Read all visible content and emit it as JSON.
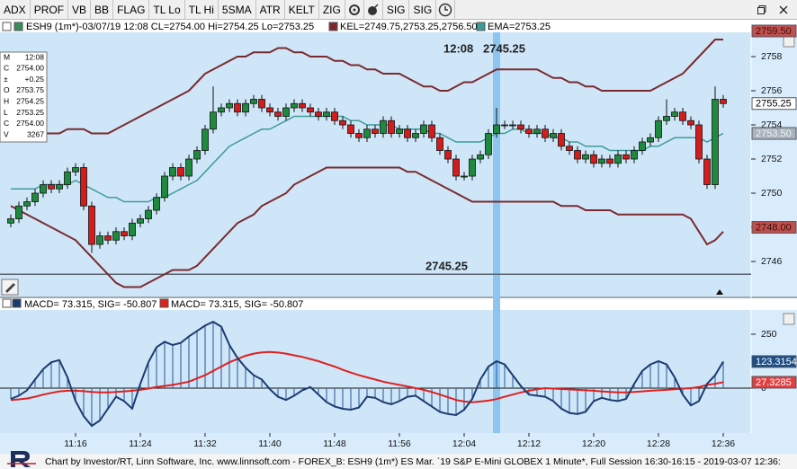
{
  "toolbar": {
    "buttons": [
      "ADX",
      "PROF",
      "VB",
      "BB",
      "FLAG",
      "TL Lo",
      "TL Hi",
      "5SMA",
      "ATR",
      "KELT",
      "ZIG"
    ],
    "buttons2": [
      "SIG",
      "SIG"
    ]
  },
  "chart_data": [
    {
      "type": "candlestick",
      "header": [
        "ESH9 (1m*)-03/07/19 12:08 CL=2754.00 Hi=2754.25 Lo=2753.25",
        "KEL=2749.75,2753.25,2756.50",
        "EMA=2753.25"
      ],
      "categories": [
        null,
        null,
        null,
        null,
        null,
        null,
        null,
        null,
        "11:16",
        null,
        null,
        null,
        null,
        null,
        null,
        null,
        "11:24",
        null,
        null,
        null,
        null,
        null,
        null,
        null,
        "11:32",
        null,
        null,
        null,
        null,
        null,
        null,
        null,
        "11:40",
        null,
        null,
        null,
        null,
        null,
        null,
        null,
        "11:48",
        null,
        null,
        null,
        null,
        null,
        null,
        null,
        "11:56",
        null,
        null,
        null,
        null,
        null,
        null,
        null,
        "12:04",
        null,
        null,
        null,
        null,
        null,
        null,
        null,
        "12:12",
        null,
        null,
        null,
        null,
        null,
        null,
        null,
        "12:20",
        null,
        null,
        null,
        null,
        null,
        null,
        null,
        "12:28",
        null,
        null,
        null,
        null,
        null,
        null,
        null,
        "12:36"
      ],
      "open": [
        2748.25,
        2748.5,
        2749.25,
        2749.5,
        2750,
        2750.5,
        2750.25,
        2750.5,
        2751.25,
        2751.5,
        2749.25,
        2747,
        2747.5,
        2747.25,
        2747.75,
        2747.5,
        2748.25,
        2748.5,
        2749,
        2749.75,
        2751,
        2751.5,
        2751,
        2752,
        2752.5,
        2753.75,
        2754.75,
        2755,
        2755.25,
        2754.75,
        2755.25,
        2755.5,
        2755,
        2754.75,
        2754.5,
        2755,
        2755.25,
        2755,
        2754.75,
        2754.5,
        2754.75,
        2754.25,
        2754,
        2753.5,
        2753.25,
        2753.75,
        2753.5,
        2754.25,
        2753.5,
        2753.75,
        2753.25,
        2753.5,
        2754,
        2753.25,
        2752.5,
        2752,
        2751,
        2751,
        2752,
        2752.25,
        2753.5,
        2754,
        2754,
        2754,
        2753.75,
        2753.5,
        2753.75,
        2753.25,
        2753.5,
        2752.75,
        2752.5,
        2752,
        2752.25,
        2751.75,
        2752,
        2751.75,
        2752.25,
        2752,
        2752.5,
        2753,
        2753.25,
        2754.25,
        2754.5,
        2754.75,
        2754.25,
        2754,
        2752,
        2750.5,
        2755.5
      ],
      "high": [
        2748.75,
        2749.5,
        2749.75,
        2750.25,
        2750.75,
        2750.75,
        2750.75,
        2751.5,
        2751.75,
        2751.75,
        2749.5,
        2747.75,
        2747.75,
        2748,
        2748,
        2748.5,
        2748.75,
        2749.25,
        2750,
        2751.25,
        2751.75,
        2751.75,
        2752.25,
        2752.75,
        2754,
        2756.25,
        2755.25,
        2755.5,
        2755.5,
        2755.5,
        2755.75,
        2755.75,
        2755.25,
        2755,
        2755.25,
        2755.5,
        2755.5,
        2755.25,
        2755,
        2755,
        2755,
        2754.5,
        2754.25,
        2753.75,
        2754,
        2754,
        2754.5,
        2754.5,
        2754,
        2754,
        2753.75,
        2754.25,
        2754.25,
        2753.5,
        2752.75,
        2752.25,
        2751.25,
        2752.25,
        2752.5,
        2753.75,
        2755,
        2754.25,
        2754.25,
        2754.25,
        2754,
        2754,
        2754,
        2753.75,
        2753.75,
        2753,
        2752.75,
        2752.5,
        2752.5,
        2752.25,
        2752.25,
        2752.5,
        2752.5,
        2752.75,
        2753.25,
        2753.5,
        2754.5,
        2755.5,
        2755,
        2755,
        2754.5,
        2754.25,
        2752.25,
        2756.25,
        2755.75
      ],
      "low": [
        2748,
        2748.25,
        2749,
        2749.25,
        2749.75,
        2750,
        2750,
        2750.25,
        2751,
        2749,
        2746.5,
        2746.75,
        2747,
        2747,
        2747.25,
        2747.25,
        2748,
        2748.25,
        2748.75,
        2749.5,
        2750.75,
        2750.75,
        2750.75,
        2751.75,
        2752.25,
        2753.5,
        2754.5,
        2754.75,
        2754.5,
        2754.5,
        2755,
        2754.75,
        2754.5,
        2754.25,
        2754.25,
        2754.75,
        2754.75,
        2754.5,
        2754.25,
        2754.25,
        2754,
        2753.75,
        2753.25,
        2753,
        2753,
        2753.25,
        2753.25,
        2753.25,
        2753.25,
        2753,
        2753,
        2753.25,
        2753,
        2752.25,
        2751.75,
        2750.75,
        2750.75,
        2750.75,
        2751.75,
        2752,
        2753.25,
        2753.75,
        2753.75,
        2753.5,
        2753.25,
        2753.25,
        2753,
        2753,
        2752.5,
        2752.25,
        2751.75,
        2751.75,
        2751.5,
        2751.5,
        2751.5,
        2751.5,
        2751.75,
        2751.75,
        2752.25,
        2752.75,
        2753,
        2754,
        2754.25,
        2754,
        2753.75,
        2751.75,
        2750.25,
        2750.25,
        2755
      ],
      "close": [
        2748.5,
        2749.25,
        2749.5,
        2750,
        2750.5,
        2750.25,
        2750.5,
        2751.25,
        2751.5,
        2749.25,
        2747,
        2747.5,
        2747.25,
        2747.75,
        2747.5,
        2748.25,
        2748.5,
        2749,
        2749.75,
        2751,
        2751.5,
        2751,
        2752,
        2752.5,
        2753.75,
        2754.75,
        2755,
        2755.25,
        2754.75,
        2755.25,
        2755.5,
        2755,
        2754.75,
        2754.5,
        2755,
        2755.25,
        2755,
        2754.75,
        2754.5,
        2754.75,
        2754.25,
        2754,
        2753.5,
        2753.25,
        2753.75,
        2753.5,
        2754.25,
        2753.5,
        2753.75,
        2753.25,
        2753.5,
        2754,
        2753.25,
        2752.5,
        2752,
        2751,
        2751,
        2752,
        2752.25,
        2753.5,
        2754,
        2754,
        2754,
        2753.75,
        2753.5,
        2753.75,
        2753.25,
        2753.5,
        2752.75,
        2752.5,
        2752,
        2752.25,
        2751.75,
        2752,
        2751.75,
        2752.25,
        2752,
        2752.5,
        2753,
        2753.25,
        2754.25,
        2754.5,
        2754.75,
        2754.25,
        2754,
        2752,
        2750.5,
        2755.5,
        2755.25
      ],
      "up_color": "#1f8a3e",
      "down_color": "#d41c1c",
      "lines": [
        {
          "color": "#7a2a2e",
          "values": [
            2753.75,
            2753.75,
            2753.75,
            2753.5,
            2753.5,
            2753.5,
            2753.5,
            2753.75,
            2753.75,
            2753.75,
            2753.5,
            2753.5,
            2753.5,
            2753.75,
            2754,
            2754.25,
            2754.5,
            2754.75,
            2755,
            2755.25,
            2755.5,
            2755.75,
            2756,
            2756.5,
            2757,
            2757.25,
            2757.5,
            2757.75,
            2758,
            2758,
            2758.25,
            2758.25,
            2758.25,
            2758.5,
            2758.5,
            2758.25,
            2758.25,
            2758,
            2758,
            2758,
            2757.75,
            2757.75,
            2757.5,
            2757.5,
            2757.25,
            2757.25,
            2757,
            2757,
            2757,
            2756.75,
            2756.5,
            2756.25,
            2756.25,
            2756,
            2756,
            2756.25,
            2756.5,
            2756.5,
            2756.75,
            2757,
            2757.25,
            2757.25,
            2757.25,
            2757.25,
            2757.25,
            2757.25,
            2757,
            2756.75,
            2756.75,
            2756.5,
            2756.5,
            2756.25,
            2756.25,
            2756,
            2756,
            2756,
            2756,
            2756,
            2756,
            2756,
            2756.25,
            2756.5,
            2756.75,
            2757,
            2757.5,
            2758,
            2758.5,
            2759,
            2759
          ]
        },
        {
          "color": "#7a2a2e",
          "values": [
            2749.25,
            2749,
            2748.75,
            2748.5,
            2748.25,
            2748,
            2747.75,
            2747.5,
            2747.25,
            2746.75,
            2746.25,
            2745.75,
            2745.25,
            2744.75,
            2744.5,
            2744.5,
            2744.5,
            2744.75,
            2745,
            2745.25,
            2745.5,
            2745.5,
            2745.5,
            2745.75,
            2746.25,
            2746.75,
            2747.25,
            2747.75,
            2748.25,
            2748.5,
            2748.75,
            2749.25,
            2749.5,
            2749.75,
            2750,
            2750.5,
            2750.75,
            2751,
            2751.25,
            2751.5,
            2751.5,
            2751.5,
            2751.5,
            2751.5,
            2751.5,
            2751.5,
            2751.5,
            2751.5,
            2751.5,
            2751.25,
            2751.25,
            2751,
            2750.75,
            2750.5,
            2750.25,
            2750,
            2749.75,
            2749.5,
            2749.5,
            2749.5,
            2749.5,
            2749.5,
            2749.5,
            2749.5,
            2749.5,
            2749.5,
            2749.5,
            2749.5,
            2749.25,
            2749.25,
            2749.25,
            2749,
            2749,
            2749,
            2749,
            2748.75,
            2748.75,
            2748.75,
            2748.75,
            2748.75,
            2748.75,
            2748.75,
            2748.75,
            2748.75,
            2748.5,
            2747.75,
            2747,
            2747.25,
            2747.75
          ]
        },
        {
          "color": "#3d9c99",
          "values": [
            2750.25,
            2750.25,
            2750.25,
            2750.25,
            2750.5,
            2750.5,
            2750.5,
            2750.5,
            2750.75,
            2750.5,
            2750.25,
            2750,
            2749.75,
            2749.75,
            2749.5,
            2749.5,
            2749.5,
            2749.5,
            2749.75,
            2749.75,
            2750,
            2750.25,
            2750.5,
            2750.75,
            2751.25,
            2751.75,
            2752.25,
            2752.75,
            2753,
            2753.25,
            2753.5,
            2753.75,
            2753.75,
            2754,
            2754.25,
            2754.5,
            2754.5,
            2754.5,
            2754.5,
            2754.5,
            2754.5,
            2754.5,
            2754.25,
            2754.25,
            2754,
            2754,
            2754,
            2754,
            2753.75,
            2753.75,
            2753.75,
            2753.75,
            2753.5,
            2753.5,
            2753.25,
            2753,
            2753,
            2753,
            2753,
            2753.25,
            2753.5,
            2753.5,
            2753.75,
            2753.75,
            2753.5,
            2753.5,
            2753.5,
            2753.25,
            2753.25,
            2753,
            2753,
            2752.75,
            2752.75,
            2752.75,
            2752.5,
            2752.5,
            2752.5,
            2752.5,
            2752.5,
            2752.75,
            2752.75,
            2753,
            2753.25,
            2753.25,
            2753.25,
            2753.25,
            2753,
            2753.25,
            2753.5
          ]
        }
      ],
      "ylim": [
        2743.95,
        2759.42
      ],
      "yticks": [
        2746,
        2748,
        2750,
        2752,
        2754,
        2756,
        2758
      ],
      "price_tags": [
        {
          "value": 2759.5,
          "label": "2759.50",
          "color": "#c0504d",
          "text_color": "#3a1010"
        },
        {
          "value": 2755.25,
          "color": "#ffffff",
          "text_color": "#000000"
        },
        {
          "value": 2753.5,
          "label": "2753.50",
          "color": "#aab4bd",
          "text_color": "#eef2f5"
        },
        {
          "value": 2748,
          "label": "2748.00",
          "color": "#c0504d",
          "text_color": "#3a1010"
        }
      ],
      "info_box": [
        [
          "M",
          "12:08"
        ],
        [
          "C",
          "2754.00"
        ],
        [
          "±",
          "+0.25"
        ],
        [
          "O",
          "2753.75"
        ],
        [
          "H",
          "2754.25"
        ],
        [
          "L",
          "2753.25"
        ],
        [
          "C",
          "2754.00"
        ],
        [
          "V",
          "3267"
        ]
      ],
      "cursor_time": "12:08",
      "hline": 2745.25
    },
    {
      "type": "macd",
      "header": [
        "MACD=  73.315, SIG= -50.807",
        "MACD=  73.315, SIG= -50.807"
      ],
      "macd": {
        "color": "#1d3b6f",
        "bar_color": "#3d6fa8",
        "values": [
          -50,
          -35,
          -10,
          40,
          88,
          120,
          130,
          50,
          -60,
          -130,
          -175,
          -150,
          -95,
          -40,
          -60,
          -95,
          20,
          120,
          190,
          215,
          200,
          210,
          240,
          265,
          290,
          308,
          285,
          200,
          140,
          95,
          60,
          40,
          -5,
          -40,
          -55,
          -35,
          -10,
          5,
          -30,
          -65,
          -85,
          -96,
          -100,
          -90,
          -40,
          -45,
          -65,
          -75,
          -60,
          -40,
          -35,
          -60,
          -85,
          -110,
          -120,
          -125,
          -100,
          -50,
          40,
          100,
          125,
          110,
          60,
          10,
          -30,
          -35,
          -40,
          -60,
          -95,
          -115,
          -120,
          -110,
          -60,
          -45,
          -55,
          -60,
          -50,
          20,
          80,
          110,
          125,
          110,
          50,
          -30,
          -80,
          -60,
          20,
          60,
          123.3154
        ]
      },
      "signal": {
        "color": "#e0201e",
        "values": [
          -55,
          -52,
          -48,
          -40,
          -30,
          -22,
          -15,
          -12,
          -12,
          -14,
          -18,
          -20,
          -20,
          -18,
          -15,
          -12,
          -8,
          -2,
          5,
          10,
          15,
          22,
          30,
          45,
          60,
          80,
          100,
          120,
          135,
          150,
          160,
          166,
          168,
          165,
          160,
          152,
          145,
          135,
          125,
          112,
          100,
          85,
          72,
          60,
          50,
          40,
          30,
          22,
          15,
          8,
          0,
          -8,
          -18,
          -30,
          -42,
          -55,
          -62,
          -66,
          -62,
          -58,
          -50.807,
          -40,
          -30,
          -20,
          -12,
          -5,
          0,
          -2,
          -4,
          -6,
          -8,
          -10,
          -12,
          -15,
          -18,
          -20,
          -20,
          -18,
          -15,
          -12,
          -10,
          -8,
          -5,
          -2,
          0,
          5,
          15,
          20,
          27.3285
        ]
      },
      "ylim": [
        -208.3,
        362.5
      ],
      "yticks": [
        0,
        250
      ],
      "tags": [
        {
          "value": 123.3154,
          "color": "#1c4f86",
          "text_color": "#ffffff"
        },
        {
          "value": 27.3285,
          "color": "#e04040",
          "text_color": "#ffffff"
        }
      ]
    }
  ],
  "footer": "Chart by Investor/RT, Linn Software, Inc. www.linnsoft.com - FOREX_B: ESH9 (1m*) ES Mar. `19 S&P E-Mini GLOBEX 1 Minute*, Full Session 16:30-16:15 - 2019-03-07 12:36:"
}
